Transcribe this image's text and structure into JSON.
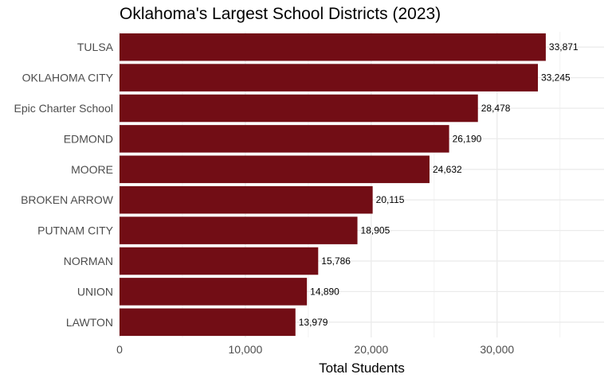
{
  "chart_data": {
    "type": "bar",
    "orientation": "horizontal",
    "title": "Oklahoma's Largest School Districts (2023)",
    "xlabel": "Total Students",
    "ylabel": "",
    "categories": [
      "TULSA",
      "OKLAHOMA CITY",
      "Epic Charter School",
      "EDMOND",
      "MOORE",
      "BROKEN ARROW",
      "PUTNAM CITY",
      "NORMAN",
      "UNION",
      "LAWTON"
    ],
    "values": [
      33871,
      33245,
      28478,
      26190,
      24632,
      20115,
      18905,
      15786,
      14890,
      13979
    ],
    "data_labels": [
      "33,871",
      "33,245",
      "28,478",
      "26,190",
      "24,632",
      "20,115",
      "18,905",
      "15,786",
      "14,890",
      "13,979"
    ],
    "xlim": [
      0,
      38500
    ],
    "x_ticks": [
      0,
      10000,
      20000,
      30000
    ],
    "x_tick_labels": [
      "0",
      "10,000",
      "20,000",
      "30,000"
    ],
    "bar_color": "#720d15",
    "grid": true,
    "legend": "none"
  }
}
